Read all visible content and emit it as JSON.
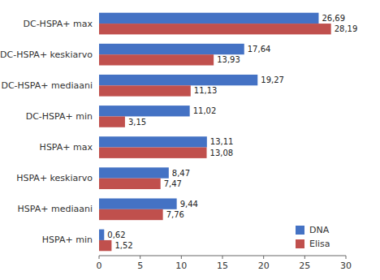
{
  "chart_data": {
    "type": "bar",
    "orientation": "horizontal",
    "categories": [
      "DC-HSPA+ max",
      "DC-HSPA+ keskiarvo",
      "DC-HSPA+ mediaani",
      "DC-HSPA+ min",
      "HSPA+ max",
      "HSPA+ keskiarvo",
      "HSPA+ mediaani",
      "HSPA+ min"
    ],
    "series": [
      {
        "name": "DNA",
        "color": "#4472C4",
        "values": [
          26.69,
          17.64,
          19.27,
          11.02,
          13.11,
          8.47,
          9.44,
          0.62
        ],
        "value_labels": [
          "26,69",
          "17,64",
          "19,27",
          "11,02",
          "13,11",
          "8,47",
          "9,44",
          "0,62"
        ]
      },
      {
        "name": "Elisa",
        "color": "#C0504D",
        "values": [
          28.19,
          13.93,
          11.13,
          3.15,
          13.08,
          7.47,
          7.76,
          1.52
        ],
        "value_labels": [
          "28,19",
          "13,93",
          "11,13",
          "3,15",
          "13,08",
          "7,47",
          "7,76",
          "1,52"
        ]
      }
    ],
    "xlim": [
      0,
      30
    ],
    "xticks": [
      0,
      5,
      10,
      15,
      20,
      25,
      30
    ],
    "data_labels": true,
    "legend": "lower right",
    "grid": false
  }
}
